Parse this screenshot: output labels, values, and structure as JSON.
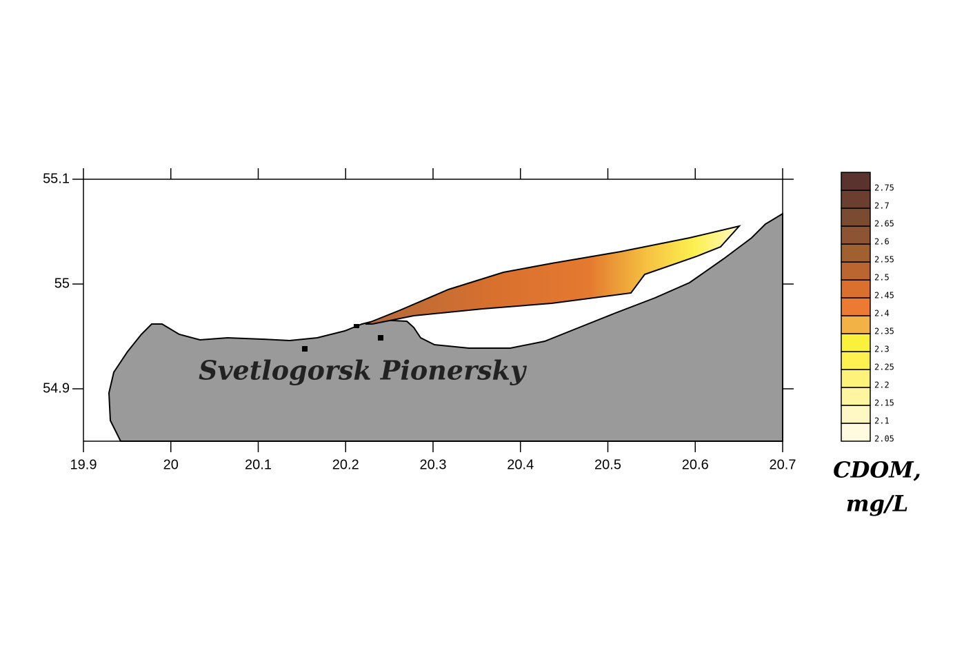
{
  "chart_data": {
    "type": "contour",
    "xlim": [
      19.9,
      20.7
    ],
    "xticks": [
      19.9,
      20,
      20.1,
      20.2,
      20.3,
      20.4,
      20.5,
      20.6,
      20.7
    ],
    "ylim": [
      54.85,
      55.1
    ],
    "yticks": [
      54.9,
      55,
      55.1
    ],
    "annotation": "Svetlogorsk Pionersky",
    "colorbar": {
      "title": [
        "CDOM,",
        "mg/L"
      ],
      "levels": [
        2.05,
        2.1,
        2.15,
        2.2,
        2.25,
        2.3,
        2.35,
        2.4,
        2.45,
        2.5,
        2.55,
        2.6,
        2.65,
        2.7,
        2.75
      ],
      "colors": [
        "#fffbe0",
        "#fff8c4",
        "#fff4a0",
        "#fff27a",
        "#fdf050",
        "#f9f13c",
        "#f2b245",
        "#ec7a32",
        "#d9702e",
        "#bb6630",
        "#a06030",
        "#8c5433",
        "#7a4a31",
        "#6a3f30",
        "#5a322e"
      ]
    }
  }
}
